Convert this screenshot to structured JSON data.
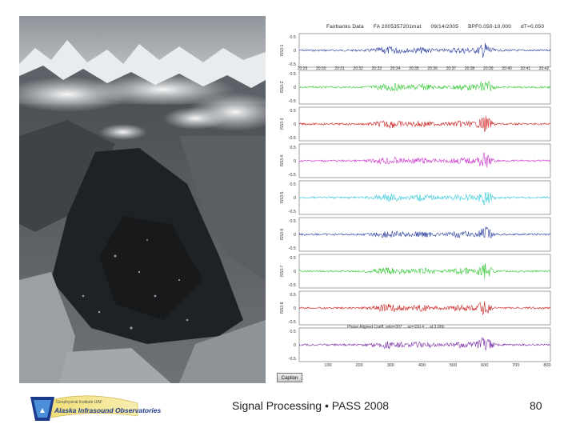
{
  "footer": {
    "text": "Signal Processing • PASS 2008",
    "page_number": "80"
  },
  "seismogram": {
    "title_parts": [
      "Fairbanks Data",
      "FA 2005357201mat",
      "09/14/2005",
      "BPF0.050-10.000",
      "dT=0.050"
    ],
    "aligned_label": "Phase Aligned Coeff. velo=307  ... az=150.4  ... at 3.0Hz",
    "caption_button": "Caption",
    "trace_labels": [
      "IS53-1",
      "IS53-2",
      "IS53-3",
      "IS53-4",
      "IS53-5",
      "IS53-6",
      "IS53-7",
      "IS53-8",
      ""
    ],
    "trace_colors": [
      "#2a3ea0",
      "#33c833",
      "#cc2020",
      "#cc33cc",
      "#33c8d8",
      "#2a3ea0",
      "#33c833",
      "#cc2020",
      "#7a2aa8"
    ],
    "y_ticks": [
      "0.5",
      "0",
      "-0.5"
    ],
    "top_ticks": [
      "20:29",
      "20:30",
      "20:31",
      "20:32",
      "20:33",
      "20:34",
      "20:35",
      "20:36",
      "20:37",
      "20:38",
      "20:39",
      "20:40",
      "20:41",
      "20:42"
    ],
    "bottom_ticks": [
      "100",
      "200",
      "300",
      "400",
      "500",
      "600",
      "700",
      "800"
    ]
  },
  "logo": {
    "text": "Alaska Infrasound Observatories",
    "small_text": "Geophysical Institute UAF"
  }
}
